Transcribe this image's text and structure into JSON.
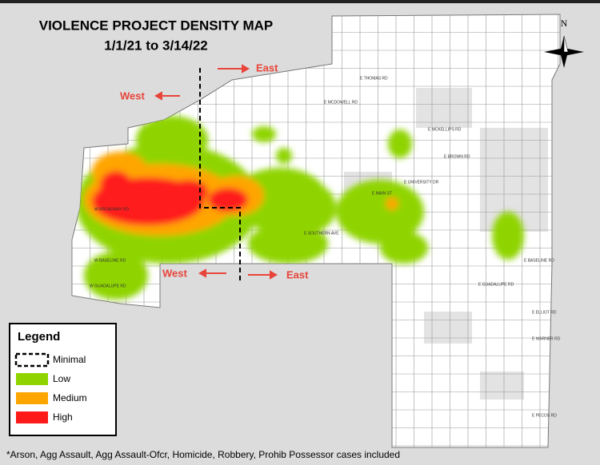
{
  "title": [
    "VIOLENCE PROJECT DENSITY MAP",
    "1/1/21 to 3/14/22"
  ],
  "compass": "N",
  "direction_labels": [
    "East",
    "West",
    "West",
    "East"
  ],
  "legend": {
    "title": "Legend",
    "items": [
      "Minimal",
      "Low",
      "Medium",
      "High"
    ]
  },
  "streets": [
    "E THOMAS RD",
    "E MCDOWELL RD",
    "E MCKELLIPS RD",
    "E BROWN RD",
    "E UNIVERSITY DR",
    "E MAIN ST",
    "E SOUTHERN AVE",
    "E BASELINE RD",
    "W BASELINE RD",
    "W BROADWAY RD",
    "E GUADALUPE RD",
    "W GUADALUPE RD",
    "E ELLIOT RD",
    "E WARNER RD",
    "E PECOS RD"
  ],
  "footnote": "*Arson, Agg Assault, Agg Assault-Ofcr, Homicide, Robbery, Prohib Possessor cases included"
}
